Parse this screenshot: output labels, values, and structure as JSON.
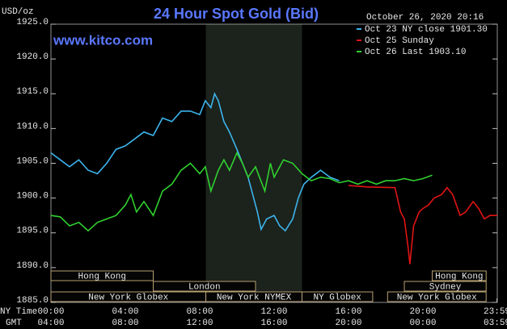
{
  "chart_data": {
    "type": "line",
    "title": "24 Hour Spot Gold (Bid)",
    "site": "www.kitco.com",
    "timestamp": "October 26, 2020 20:16",
    "y_label": "USD/oz",
    "x_row_labels": [
      "NY Time",
      "GMT"
    ],
    "xlim": [
      0,
      24
    ],
    "xticks": [
      {
        "value": 0,
        "label": "00:00"
      },
      {
        "value": 4,
        "label": "04:00"
      },
      {
        "value": 8,
        "label": "08:00"
      },
      {
        "value": 12,
        "label": "12:00"
      },
      {
        "value": 16,
        "label": "16:00"
      },
      {
        "value": 20,
        "label": "20:00"
      },
      {
        "value": 23.98,
        "label": "23:59"
      }
    ],
    "gmt_labels": [
      "04:00",
      "08:00",
      "12:00",
      "16:00",
      "20:00",
      "00:00",
      "03:59"
    ],
    "ylim": [
      1885,
      1925
    ],
    "yticks": [
      {
        "value": 1885,
        "label": "1885.0"
      },
      {
        "value": 1890,
        "label": "1890.0"
      },
      {
        "value": 1895,
        "label": "1895.0"
      },
      {
        "value": 1900,
        "label": "1900.0"
      },
      {
        "value": 1905,
        "label": "1905.0"
      },
      {
        "value": 1910,
        "label": "1910.0"
      },
      {
        "value": 1915,
        "label": "1915.0"
      },
      {
        "value": 1920,
        "label": "1920.0"
      },
      {
        "value": 1925,
        "label": "1925.0"
      }
    ],
    "grid": false,
    "legend": "top-right",
    "highlight_x": [
      8.33,
      13.5
    ],
    "sessions": [
      {
        "label": "Hong Kong",
        "start": 0,
        "end": 5.5
      },
      {
        "label": "Hong Kong",
        "start": 20.5,
        "end": 23.4
      },
      {
        "label": "London",
        "start": 5.5,
        "end": 11
      },
      {
        "label": "Sydney",
        "start": 19,
        "end": 23.4
      },
      {
        "label": "New York Globex",
        "start": 0,
        "end": 8.33
      },
      {
        "label": "New York NYMEX",
        "start": 8.33,
        "end": 13.5
      },
      {
        "label": "NY Globex",
        "start": 13.5,
        "end": 17.3
      },
      {
        "label": "New York Globex",
        "start": 18.1,
        "end": 23.4
      }
    ],
    "series": [
      {
        "name": "Oct 23 NY close 1901.30",
        "color": "#3cb4ec",
        "x": [
          0,
          0.5,
          1,
          1.5,
          2,
          2.5,
          3,
          3.5,
          4,
          4.5,
          5,
          5.5,
          6,
          6.5,
          7,
          7.5,
          8,
          8.3,
          8.6,
          8.8,
          9,
          9.3,
          9.6,
          10,
          10.3,
          10.6,
          10.9,
          11.1,
          11.3,
          11.6,
          12,
          12.3,
          12.6,
          13,
          13.3,
          13.6,
          14,
          14.5,
          15,
          15.5
        ],
        "values": [
          1906.5,
          1905.5,
          1904.5,
          1905.5,
          1904,
          1903.5,
          1905,
          1907,
          1907.5,
          1908.5,
          1909.5,
          1909,
          1911.5,
          1911,
          1912.5,
          1912.5,
          1912,
          1914,
          1913,
          1915,
          1914,
          1911,
          1909.5,
          1907,
          1905,
          1903,
          1900,
          1898,
          1895.5,
          1897,
          1897.5,
          1896,
          1895.3,
          1897,
          1900,
          1902,
          1903,
          1904,
          1903,
          1902.5
        ]
      },
      {
        "name": "Oct 25 Sunday",
        "color": "#e01414",
        "x": [
          16,
          17,
          18.5,
          18.8,
          19,
          19.2,
          19.3,
          19.5,
          19.8,
          20,
          20.3,
          20.6,
          21,
          21.3,
          21.6,
          22,
          22.3,
          22.7,
          23,
          23.3,
          23.6,
          24
        ],
        "values": [
          1901.8,
          1901.6,
          1901.5,
          1898,
          1897,
          1893,
          1890.5,
          1896,
          1898,
          1898.5,
          1899,
          1900,
          1900.5,
          1901.5,
          1900.5,
          1897.5,
          1898,
          1899.5,
          1898.5,
          1897,
          1897.5,
          1897.5
        ]
      },
      {
        "name": "Oct 26 Last 1903.10",
        "color": "#30d030",
        "x": [
          0,
          0.5,
          1,
          1.5,
          2,
          2.5,
          3,
          3.5,
          4,
          4.3,
          4.6,
          5,
          5.5,
          6,
          6.5,
          7,
          7.5,
          8,
          8.3,
          8.6,
          9,
          9.3,
          9.6,
          10,
          10.3,
          10.6,
          11,
          11.5,
          11.8,
          12,
          12.5,
          13,
          13.5,
          14,
          14.5,
          15,
          15.5,
          16,
          16.5,
          17,
          17.5,
          18,
          18.5,
          19,
          19.5,
          20,
          20.5
        ],
        "values": [
          1897.5,
          1897.3,
          1896,
          1896.5,
          1895.3,
          1896.5,
          1897,
          1897.5,
          1899,
          1900.5,
          1898,
          1899.5,
          1897.5,
          1901,
          1902,
          1904,
          1905,
          1903.5,
          1904.5,
          1901,
          1904,
          1905.5,
          1904,
          1906.5,
          1905,
          1903,
          1904.5,
          1901,
          1905,
          1903,
          1905.5,
          1905,
          1903.5,
          1902.5,
          1903,
          1902.8,
          1902.2,
          1902.5,
          1902,
          1902.5,
          1902,
          1902.5,
          1902.5,
          1902.8,
          1902.5,
          1902.8,
          1903.3
        ]
      }
    ]
  }
}
